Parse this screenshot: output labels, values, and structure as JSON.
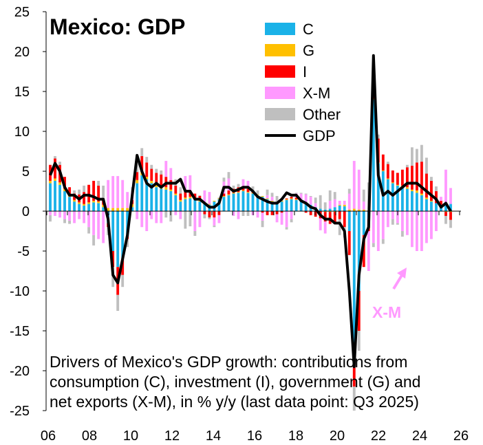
{
  "chart_data": {
    "type": "bar",
    "title": "Mexico: GDP",
    "note_lines": [
      "Drivers of Mexico's GDP growth: contributions from",
      "consumption (C), investment (I), government (G) and",
      "net exports (X-M), in % y/y (last data point: Q3 2025)"
    ],
    "x_tick_labels": [
      "06",
      "08",
      "10",
      "12",
      "14",
      "16",
      "18",
      "20",
      "22",
      "24",
      "26"
    ],
    "y_tick_labels": [
      "25",
      "20",
      "15",
      "10",
      "5",
      "0",
      "-5",
      "-10",
      "-15",
      "-20",
      "-25"
    ],
    "ylim": [
      -25,
      25
    ],
    "grid": false,
    "legend_position": "top-center",
    "annotation": {
      "text": "X-M",
      "color": "#ff99ff"
    },
    "colors": {
      "C": "#1ab2e8",
      "G": "#ffc000",
      "I": "#ff0000",
      "X-M": "#ff99ff",
      "Other": "#bfbfbf",
      "GDP": "#000000"
    },
    "series": [
      {
        "name": "C",
        "kind": "bar",
        "values": [
          3.5,
          3.8,
          3.3,
          2.5,
          1.8,
          1.2,
          0.9,
          0.7,
          0.9,
          1.1,
          1.0,
          0.5,
          -1.5,
          -5.0,
          -7.0,
          -6.0,
          -3.0,
          0.5,
          3.5,
          4.5,
          4.0,
          3.5,
          3.0,
          2.8,
          2.7,
          2.5,
          2.0,
          1.2,
          1.5,
          1.6,
          1.4,
          1.2,
          1.0,
          0.8,
          1.2,
          1.5,
          1.8,
          2.0,
          2.2,
          2.3,
          2.5,
          2.3,
          2.2,
          2.0,
          1.8,
          1.5,
          1.2,
          1.0,
          1.2,
          1.4,
          1.5,
          1.4,
          1.2,
          1.0,
          0.8,
          0.5,
          0.3,
          0.2,
          0.3,
          0.5,
          0.7,
          0.6,
          -2.5,
          -17.0,
          -10.0,
          -3.0,
          -1.0,
          14.0,
          6.0,
          5.0,
          4.0,
          3.5,
          3.2,
          3.0,
          2.8,
          2.5,
          2.3,
          2.0,
          1.5,
          1.2,
          1.0,
          0.8,
          0.7,
          0.9
        ]
      },
      {
        "name": "G",
        "kind": "bar",
        "values": [
          0.3,
          0.3,
          0.3,
          0.3,
          0.2,
          0.2,
          0.2,
          0.2,
          0.2,
          0.2,
          0.2,
          0.3,
          0.4,
          0.4,
          0.4,
          0.4,
          0.4,
          0.4,
          0.4,
          0.4,
          0.3,
          0.3,
          0.3,
          0.3,
          0.3,
          0.2,
          0.2,
          0.2,
          0.2,
          0.2,
          0.2,
          0.2,
          0.1,
          0.1,
          0.1,
          0.1,
          0.1,
          0.1,
          0.1,
          0.1,
          0.1,
          0.1,
          0.1,
          0.1,
          0.1,
          0.1,
          0.1,
          0.1,
          0.1,
          0.1,
          0.1,
          0.1,
          0.1,
          0.1,
          0.0,
          0.0,
          0.0,
          -0.1,
          -0.1,
          -0.1,
          0.1,
          0.2,
          0.2,
          0.3,
          0.2,
          0.2,
          0.1,
          0.1,
          0.1,
          0.1,
          0.1,
          0.1,
          0.1,
          0.2,
          0.2,
          0.2,
          0.3,
          0.2,
          0.2,
          0.1,
          0.0,
          0.0,
          -0.1,
          -0.1
        ]
      },
      {
        "name": "I",
        "kind": "bar",
        "values": [
          2.0,
          2.5,
          2.2,
          1.5,
          1.0,
          0.8,
          1.0,
          1.5,
          2.2,
          2.5,
          2.0,
          0.8,
          -0.5,
          -2.0,
          -3.5,
          -2.0,
          -0.5,
          0.5,
          1.0,
          2.0,
          1.8,
          1.5,
          1.5,
          1.5,
          1.3,
          1.2,
          1.0,
          0.8,
          0.7,
          0.7,
          0.6,
          0.5,
          -0.4,
          -0.8,
          -0.8,
          -0.5,
          0.3,
          0.5,
          0.5,
          0.6,
          0.4,
          0.4,
          0.2,
          0.0,
          -0.2,
          -0.5,
          -0.5,
          -0.4,
          -0.2,
          0.1,
          0.2,
          0.2,
          0.1,
          -0.2,
          -0.5,
          -0.7,
          -0.9,
          -1.2,
          -1.5,
          -1.5,
          -1.0,
          -2.0,
          -3.0,
          -5.0,
          -5.0,
          -4.0,
          -1.5,
          4.0,
          3.0,
          2.0,
          1.8,
          1.5,
          1.5,
          2.0,
          2.5,
          3.0,
          3.5,
          4.0,
          3.0,
          2.5,
          1.5,
          0.5,
          -0.5,
          -1.0
        ]
      },
      {
        "name": "X-M",
        "kind": "bar",
        "values": [
          -0.5,
          -0.6,
          -0.8,
          -1.0,
          -1.2,
          -1.5,
          -1.0,
          -1.5,
          -2.0,
          -3.0,
          -3.5,
          -4.0,
          3.5,
          4.0,
          4.0,
          3.5,
          2.0,
          1.0,
          -1.0,
          -2.0,
          -2.5,
          -1.0,
          -1.5,
          -1.5,
          2.0,
          1.5,
          -0.5,
          -1.0,
          2.0,
          2.0,
          -2.5,
          -2.0,
          1.5,
          1.5,
          -1.0,
          -1.0,
          1.5,
          1.5,
          -0.6,
          -1.0,
          1.0,
          1.0,
          -0.5,
          -0.8,
          -1.0,
          0.4,
          0.5,
          -1.0,
          -1.5,
          -2.0,
          -1.0,
          0.5,
          0.8,
          1.0,
          1.0,
          0.5,
          -1.5,
          -1.5,
          1.0,
          1.0,
          0.5,
          0.5,
          2.0,
          6.0,
          5.0,
          1.0,
          -5.0,
          -4.0,
          -5.0,
          -3.5,
          -2.0,
          -1.0,
          -1.5,
          -2.5,
          -3.0,
          -4.5,
          -5.0,
          -5.0,
          -4.0,
          -3.5,
          -2.5,
          0.5,
          4.5,
          2.0
        ]
      },
      {
        "name": "Other",
        "kind": "bar",
        "values": [
          -0.8,
          0.3,
          0.4,
          -0.5,
          -0.4,
          0.4,
          0.6,
          0.8,
          -0.8,
          -1.3,
          0.6,
          1.6,
          -1.0,
          -2.5,
          -2.0,
          -1.5,
          -1.0,
          0.6,
          1.2,
          1.0,
          0.7,
          0.5,
          0.5,
          0.5,
          -0.8,
          -1.3,
          0.8,
          0.8,
          -2.2,
          -1.9,
          -0.6,
          0.1,
          -0.5,
          -0.2,
          -0.2,
          0.1,
          0.5,
          0.8,
          0.4,
          0.4,
          -0.6,
          -0.6,
          0.6,
          0.5,
          -0.8,
          0.7,
          0.5,
          0.8,
          0.3,
          -0.3,
          -0.4,
          0.1,
          0.1,
          0.1,
          0.1,
          0.7,
          1.7,
          0.9,
          1.3,
          0.9,
          -2.0,
          -1.3,
          0.6,
          -3.0,
          -2.5,
          1.5,
          3.5,
          -0.5,
          0.5,
          -0.6,
          0.3,
          -0.7,
          -0.2,
          -0.7,
          0.3,
          2.3,
          1.7,
          2.1,
          2.0,
          0.5,
          0.6,
          0.0,
          -1.0,
          -1.0
        ]
      },
      {
        "name": "GDP",
        "kind": "line",
        "values": [
          4.5,
          6.0,
          5.0,
          3.0,
          2.0,
          2.0,
          1.5,
          2.0,
          2.0,
          1.8,
          1.5,
          1.5,
          -1.0,
          -8.0,
          -9.0,
          -6.0,
          -3.0,
          2.0,
          7.0,
          5.0,
          3.5,
          3.0,
          3.5,
          3.0,
          3.5,
          3.5,
          3.5,
          4.0,
          2.5,
          2.5,
          1.5,
          1.5,
          1.0,
          0.5,
          0.5,
          1.0,
          3.0,
          3.0,
          2.5,
          2.7,
          3.0,
          3.0,
          2.5,
          1.8,
          1.5,
          1.2,
          1.0,
          1.0,
          1.5,
          2.3,
          2.0,
          2.0,
          1.3,
          1.0,
          0.5,
          0.3,
          -0.5,
          -1.0,
          -1.0,
          -1.5,
          -1.5,
          -2.5,
          -10.0,
          -19.5,
          -8.0,
          -3.5,
          -2.0,
          19.5,
          4.5,
          2.0,
          2.5,
          2.0,
          2.5,
          3.0,
          3.5,
          3.5,
          3.5,
          3.0,
          2.5,
          2.0,
          1.5,
          0.5,
          1.0,
          0.0
        ]
      }
    ]
  }
}
